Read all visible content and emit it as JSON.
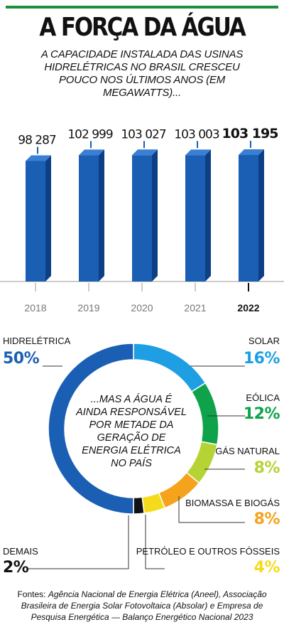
{
  "title": "A FORÇA DA ÁGUA",
  "subtitle": "A CAPACIDADE INSTALADA DAS USINAS HIDRELÉTRICAS NO BRASIL CRESCEU POUCO NOS ÚLTIMOS ANOS (EM MEGAWATTS)...",
  "colors": {
    "accent_green": "#1a8f3c",
    "bar_blue": "#1a5fb4"
  },
  "chart_data": [
    {
      "type": "bar",
      "categories": [
        "2018",
        "2019",
        "2020",
        "2021",
        "2022"
      ],
      "values": [
        98287,
        102999,
        103027,
        103003,
        103195
      ],
      "value_labels": [
        "98 287",
        "102 999",
        "103 027",
        "103 003",
        "103 195"
      ],
      "highlight": "2022",
      "ylabel": "",
      "xlabel": ""
    },
    {
      "type": "pie",
      "style": "donut",
      "center_text": "...MAS A ÁGUA É AINDA RESPONSÁVEL POR METADE DA GERAÇÃO DE ENERGIA ELÉTRICA NO PAÍS",
      "slices": [
        {
          "label": "SOLAR",
          "value": 16,
          "display": "16%",
          "color": "#1e9fe3"
        },
        {
          "label": "EÓLICA",
          "value": 12,
          "display": "12%",
          "color": "#0ea34a"
        },
        {
          "label": "GÁS NATURAL",
          "value": 8,
          "display": "8%",
          "color": "#b5d335"
        },
        {
          "label": "BIOMASSA E BIOGÁS",
          "value": 8,
          "display": "8%",
          "color": "#f5a21c"
        },
        {
          "label": "PETRÓLEO E OUTROS FÓSSEIS",
          "value": 4,
          "display": "4%",
          "color": "#f4dc1c"
        },
        {
          "label": "DEMAIS",
          "value": 2,
          "display": "2%",
          "color": "#111111"
        },
        {
          "label": "HIDRELÉTRICA",
          "value": 50,
          "display": "50%",
          "color": "#1a5fb4"
        }
      ]
    }
  ],
  "source": {
    "prefix": "Fontes: ",
    "text": "Agência Nacional de Energia Elétrica (Aneel), Associação Brasileira de Energia Solar Fotovoltaica (Absolar) e Empresa de Pesquisa Energética — Balanço Energético Nacional 2023"
  }
}
